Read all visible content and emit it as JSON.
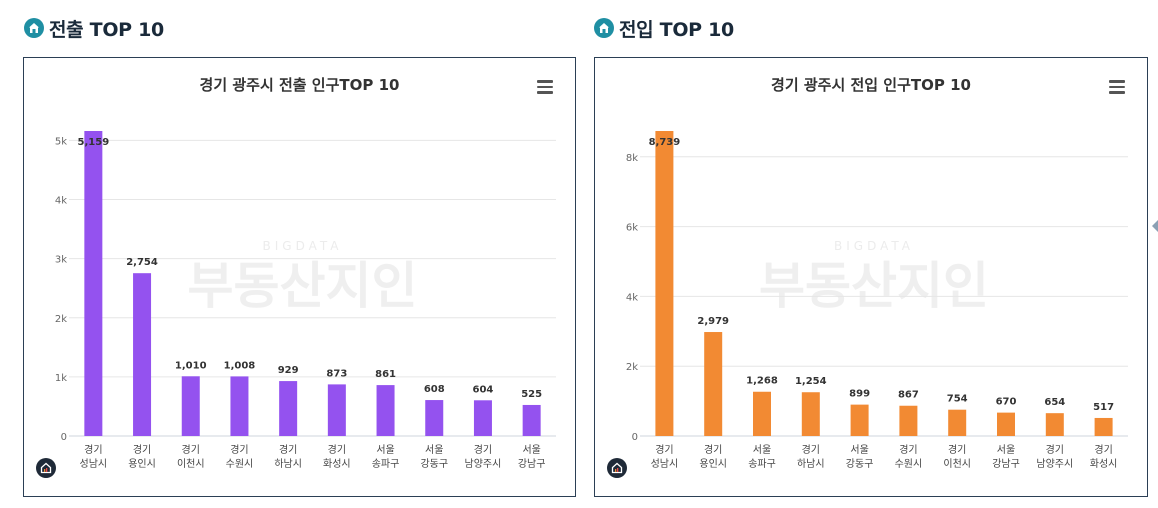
{
  "sections": [
    {
      "id": "out",
      "header": "전출 TOP 10",
      "chart_data": {
        "type": "bar",
        "title": "경기 광주시 전출 인구TOP 10",
        "categories": [
          [
            "경기",
            "성남시"
          ],
          [
            "경기",
            "용인시"
          ],
          [
            "경기",
            "이천시"
          ],
          [
            "경기",
            "수원시"
          ],
          [
            "경기",
            "하남시"
          ],
          [
            "경기",
            "화성시"
          ],
          [
            "서울",
            "송파구"
          ],
          [
            "서울",
            "강동구"
          ],
          [
            "경기",
            "남양주시"
          ],
          [
            "서울",
            "강남구"
          ]
        ],
        "values": [
          5159,
          2754,
          1010,
          1008,
          929,
          873,
          861,
          608,
          604,
          525
        ],
        "data_labels": [
          "5,159",
          "2,754",
          "1,010",
          "1,008",
          "929",
          "873",
          "861",
          "608",
          "604",
          "525"
        ],
        "yticks": [
          0,
          1000,
          2000,
          3000,
          4000,
          5000
        ],
        "ytick_labels": [
          "0",
          "1k",
          "2k",
          "3k",
          "4k",
          "5k"
        ],
        "ylim": [
          0,
          5159
        ],
        "color": "#9452ef",
        "grid": true,
        "legend": "none"
      }
    },
    {
      "id": "in",
      "header": "전입 TOP 10",
      "chart_data": {
        "type": "bar",
        "title": "경기 광주시 전입 인구TOP 10",
        "categories": [
          [
            "경기",
            "성남시"
          ],
          [
            "경기",
            "용인시"
          ],
          [
            "서울",
            "송파구"
          ],
          [
            "경기",
            "하남시"
          ],
          [
            "서울",
            "강동구"
          ],
          [
            "경기",
            "수원시"
          ],
          [
            "경기",
            "이천시"
          ],
          [
            "서울",
            "강남구"
          ],
          [
            "경기",
            "남양주시"
          ],
          [
            "경기",
            "화성시"
          ]
        ],
        "values": [
          8739,
          2979,
          1268,
          1254,
          899,
          867,
          754,
          670,
          654,
          517
        ],
        "data_labels": [
          "8,739",
          "2,979",
          "1,268",
          "1,254",
          "899",
          "867",
          "754",
          "670",
          "654",
          "517"
        ],
        "yticks": [
          0,
          2000,
          4000,
          6000,
          8000
        ],
        "ytick_labels": [
          "0",
          "2k",
          "4k",
          "6k",
          "8k"
        ],
        "ylim": [
          0,
          8739
        ],
        "color": "#f28a33",
        "grid": true,
        "legend": "none"
      }
    }
  ],
  "watermark": {
    "line1": "BIGDATA",
    "line2": "부동산지인"
  },
  "icons": {
    "header_icon": "home-icon",
    "menu_icon": "hamburger-menu-icon",
    "brand_icon": "brand-logo-icon"
  }
}
